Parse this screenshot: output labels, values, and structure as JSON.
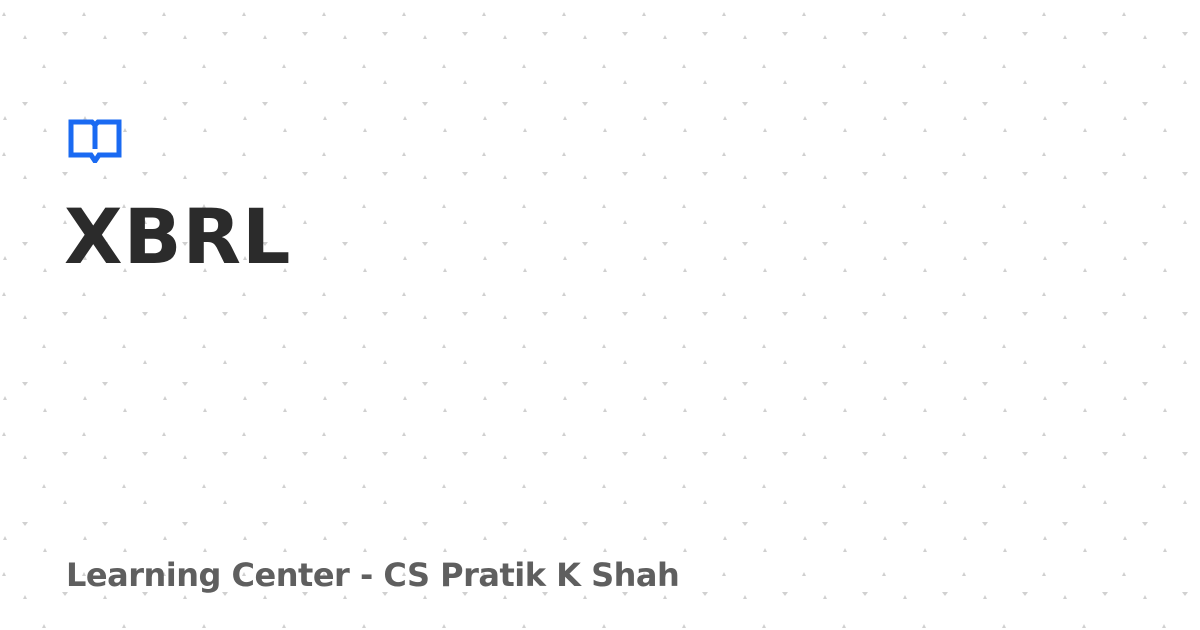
{
  "card": {
    "title": "XBRL",
    "subtitle": "Learning Center - CS Pratik K Shah"
  },
  "logo": {
    "icon": "open-book-icon",
    "color": "#1a6af2"
  },
  "colors": {
    "background": "#ffffff",
    "pattern": "#d0d0d0",
    "title": "#2b2b2b",
    "subtitle": "#5f5f5f"
  }
}
